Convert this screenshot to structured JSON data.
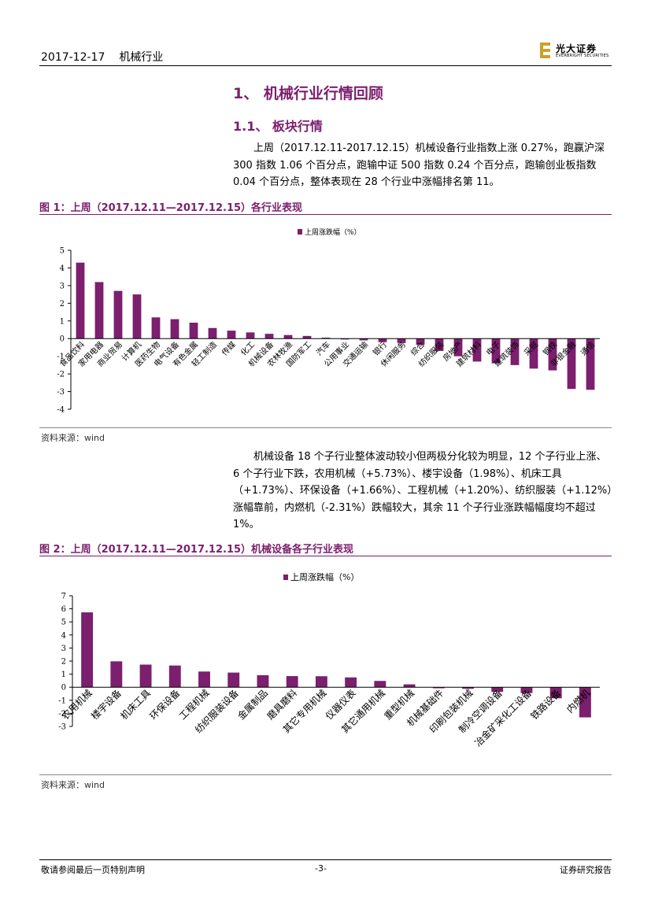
{
  "header": {
    "date": "2017-12-17",
    "industry": "机械行业",
    "logo_cn": "光大证券",
    "logo_en": "EVERBRIGHT SECURITIES",
    "brand_color": "#c9a227"
  },
  "section_title": "1、 机械行业行情回顾",
  "subsection_title": "1.1、 板块行情",
  "para1": "上周（2017.12.11-2017.12.15）机械设备行业指数上涨 0.27%，跑赢沪深 300 指数 1.06 个百分点，跑输中证 500 指数 0.24 个百分点，跑输创业板指数 0.04 个百分点，整体表现在 28 个行业中涨幅排名第 11。",
  "fig1_title": "图 1：上周（2017.12.11—2017.12.15）各行业表现",
  "fig1_source": "资料来源：wind",
  "para2": "机械设备 18 个子行业整体波动较小但两极分化较为明显，12 个子行业上涨、6 个子行业下跌，农用机械（+5.73%）、楼宇设备（1.98%）、机床工具（+1.73%）、环保设备（+1.66%）、工程机械（+1.20%）、纺织服装（+1.12%）涨幅靠前，内燃机（-2.31%）跌幅较大，其余 11 个子行业涨跌幅幅度均不超过 1%。",
  "fig2_title": "图 2：上周（2017.12.11—2017.12.15）机械设备各子行业表现",
  "fig2_source": "资料来源：wind",
  "footer": {
    "left": "敬请参阅最后一页特别声明",
    "page": "-3-",
    "right": "证券研究报告"
  },
  "bar_color": "#7b1f6e",
  "chart_data": [
    {
      "type": "bar",
      "legend": "上周涨跌幅（%）",
      "categories": [
        "食品饮料",
        "家用电器",
        "商业贸易",
        "计算机",
        "医药生物",
        "电气设备",
        "有色金属",
        "轻工制造",
        "传媒",
        "化工",
        "机械设备",
        "农林牧渔",
        "国防军工",
        "汽车",
        "公用事业",
        "交通运输",
        "银行",
        "休闲服务",
        "综合",
        "纺织服装",
        "房地产",
        "建筑材料",
        "电子",
        "建筑装饰",
        "采掘",
        "钢铁",
        "非银金融",
        "通信"
      ],
      "values": [
        4.3,
        3.2,
        2.7,
        2.5,
        1.2,
        1.1,
        0.9,
        0.6,
        0.45,
        0.35,
        0.27,
        0.2,
        0.15,
        0.05,
        -0.05,
        -0.1,
        -0.2,
        -0.25,
        -0.35,
        -0.7,
        -1.0,
        -1.3,
        -1.4,
        -1.5,
        -1.7,
        -1.8,
        -2.85,
        -2.9
      ],
      "ylim": [
        -4,
        5
      ],
      "yticks": [
        -4,
        -3,
        -2,
        -1,
        0,
        1,
        2,
        3,
        4,
        5
      ]
    },
    {
      "type": "bar",
      "legend": "上周涨跌幅（%）",
      "categories": [
        "农用机械",
        "楼宇设备",
        "机床工具",
        "环保设备",
        "工程机械",
        "纺织服装设备",
        "金属制品",
        "磨具磨料",
        "其它专用机械",
        "仪器仪表",
        "其它通用机械",
        "重型机械",
        "机械基础件",
        "印刷包装机械",
        "制冷空调设备",
        "冶金矿采化工设备",
        "铁路设备",
        "内燃机"
      ],
      "values": [
        5.73,
        1.98,
        1.73,
        1.66,
        1.2,
        1.12,
        0.92,
        0.85,
        0.84,
        0.75,
        0.48,
        0.22,
        -0.08,
        -0.12,
        -0.35,
        -0.45,
        -0.85,
        -2.31
      ],
      "ylim": [
        -3,
        7
      ],
      "yticks": [
        -3,
        -2,
        -1,
        0,
        1,
        2,
        3,
        4,
        5,
        6,
        7
      ]
    }
  ]
}
